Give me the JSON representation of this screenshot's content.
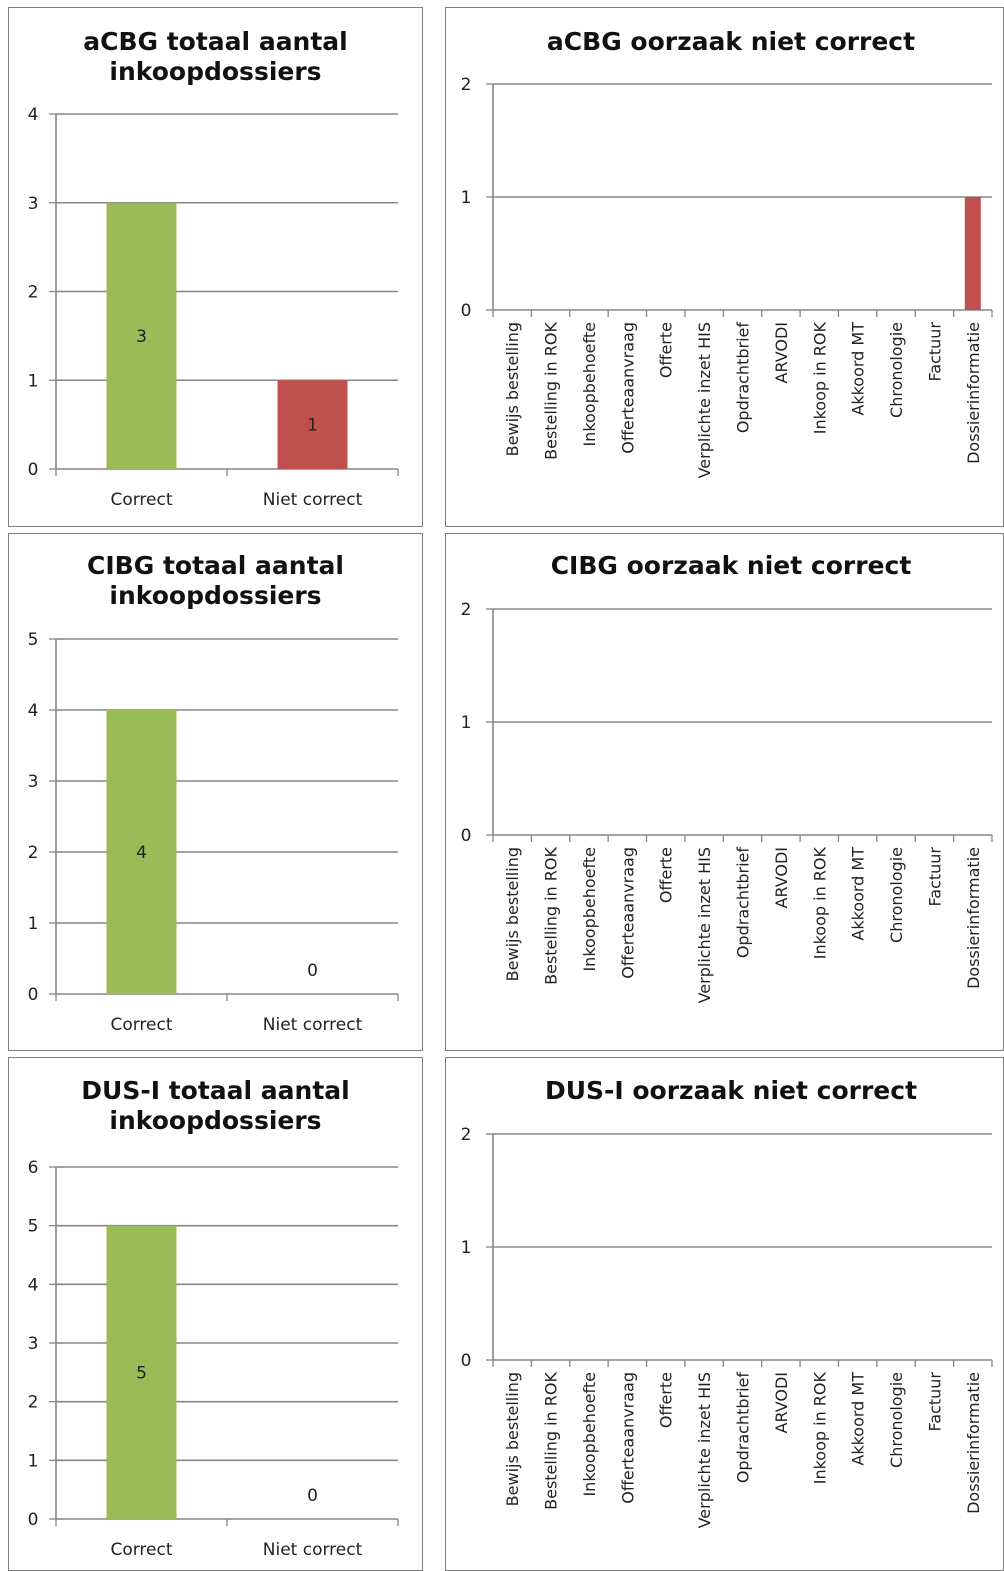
{
  "colors": {
    "correct": "#9bbb59",
    "niet_correct": "#c0504d",
    "grid": "#868686",
    "axis": "#868686"
  },
  "chart_data": [
    {
      "type": "bar",
      "title": "aCBG totaal aantal inkoopdossiers",
      "categories": [
        "Correct",
        "Niet correct"
      ],
      "values": [
        3,
        1
      ],
      "ylim": [
        0,
        4
      ],
      "yticks": [
        "0",
        "1",
        "2",
        "3",
        "4"
      ],
      "data_labels": [
        "3",
        "1"
      ],
      "legend": "none",
      "grid": true
    },
    {
      "type": "bar",
      "title": "aCBG oorzaak niet correct",
      "categories": [
        "Bewijs bestelling",
        "Bestelling in ROK",
        "Inkoopbehoefte",
        "Offerteaanvraag",
        "Offerte",
        "Verplichte inzet HIS",
        "Opdrachtbrief",
        "ARVODI",
        "Inkoop in ROK",
        "Akkoord MT",
        "Chronologie",
        "Factuur",
        "Dossierinformatie"
      ],
      "values": [
        0,
        0,
        0,
        0,
        0,
        0,
        0,
        0,
        0,
        0,
        0,
        0,
        1
      ],
      "ylim": [
        0,
        2
      ],
      "yticks": [
        "0",
        "1",
        "2"
      ],
      "legend": "none",
      "grid": true
    },
    {
      "type": "bar",
      "title": "CIBG totaal aantal inkoopdossiers",
      "categories": [
        "Correct",
        "Niet correct"
      ],
      "values": [
        4,
        0
      ],
      "ylim": [
        0,
        5
      ],
      "yticks": [
        "0",
        "1",
        "2",
        "3",
        "4",
        "5"
      ],
      "data_labels": [
        "4",
        "0"
      ],
      "legend": "none",
      "grid": true
    },
    {
      "type": "bar",
      "title": "CIBG oorzaak niet correct",
      "categories": [
        "Bewijs bestelling",
        "Bestelling in ROK",
        "Inkoopbehoefte",
        "Offerteaanvraag",
        "Offerte",
        "Verplichte inzet HIS",
        "Opdrachtbrief",
        "ARVODI",
        "Inkoop in ROK",
        "Akkoord MT",
        "Chronologie",
        "Factuur",
        "Dossierinformatie"
      ],
      "values": [
        0,
        0,
        0,
        0,
        0,
        0,
        0,
        0,
        0,
        0,
        0,
        0,
        0
      ],
      "ylim": [
        0,
        2
      ],
      "yticks": [
        "0",
        "1",
        "2"
      ],
      "legend": "none",
      "grid": true
    },
    {
      "type": "bar",
      "title": "DUS-I totaal aantal inkoopdossiers",
      "categories": [
        "Correct",
        "Niet correct"
      ],
      "values": [
        5,
        0
      ],
      "ylim": [
        0,
        6
      ],
      "yticks": [
        "0",
        "1",
        "2",
        "3",
        "4",
        "5",
        "6"
      ],
      "data_labels": [
        "5",
        "0"
      ],
      "legend": "none",
      "grid": true
    },
    {
      "type": "bar",
      "title": "DUS-I oorzaak niet correct",
      "categories": [
        "Bewijs bestelling",
        "Bestelling in ROK",
        "Inkoopbehoefte",
        "Offerteaanvraag",
        "Offerte",
        "Verplichte inzet HIS",
        "Opdrachtbrief",
        "ARVODI",
        "Inkoop in ROK",
        "Akkoord MT",
        "Chronologie",
        "Factuur",
        "Dossierinformatie"
      ],
      "values": [
        0,
        0,
        0,
        0,
        0,
        0,
        0,
        0,
        0,
        0,
        0,
        0,
        0
      ],
      "ylim": [
        0,
        2
      ],
      "yticks": [
        "0",
        "1",
        "2"
      ],
      "legend": "none",
      "grid": true
    }
  ]
}
